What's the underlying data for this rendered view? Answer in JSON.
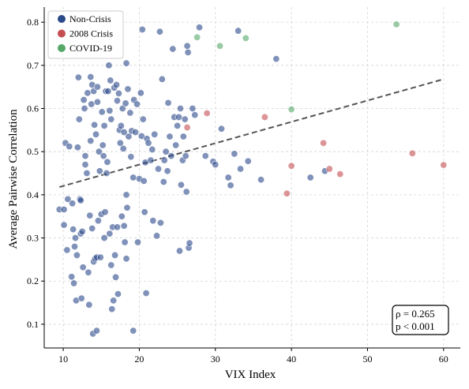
{
  "chart_data": {
    "type": "scatter",
    "xlabel": "VIX Index",
    "ylabel": "Average Pairwise Correlation",
    "xlim": [
      7.5,
      62.2
    ],
    "ylim": [
      0.045,
      0.835
    ],
    "xticks": [
      10,
      20,
      30,
      40,
      50,
      60
    ],
    "yticks": [
      0.1,
      0.2,
      0.3,
      0.4,
      0.5,
      0.6,
      0.7,
      0.8
    ],
    "grid": true,
    "legend_position": "top-left",
    "colors": {
      "Non-Crisis": "#2c4a8a",
      "2008 Crisis": "#c44e52",
      "COVID-19": "#55a868",
      "trend": "#555555"
    },
    "series": [
      {
        "name": "Non-Crisis",
        "points": [
          [
            9.5,
            0.366
          ],
          [
            10.1,
            0.366
          ],
          [
            10.1,
            0.33
          ],
          [
            10.3,
            0.52
          ],
          [
            10.5,
            0.272
          ],
          [
            10.6,
            0.39
          ],
          [
            10.8,
            0.512
          ],
          [
            11.1,
            0.21
          ],
          [
            11.2,
            0.38
          ],
          [
            11.3,
            0.32
          ],
          [
            11.4,
            0.195
          ],
          [
            11.5,
            0.28
          ],
          [
            11.6,
            0.3
          ],
          [
            11.7,
            0.155
          ],
          [
            11.8,
            0.26
          ],
          [
            11.9,
            0.51
          ],
          [
            12.0,
            0.672
          ],
          [
            12.1,
            0.575
          ],
          [
            12.2,
            0.39
          ],
          [
            12.3,
            0.387
          ],
          [
            12.3,
            0.31
          ],
          [
            12.4,
            0.16
          ],
          [
            12.5,
            0.315
          ],
          [
            12.6,
            0.232
          ],
          [
            12.7,
            0.62
          ],
          [
            12.8,
            0.6
          ],
          [
            12.9,
            0.47
          ],
          [
            12.9,
            0.49
          ],
          [
            13.1,
            0.45
          ],
          [
            13.2,
            0.636
          ],
          [
            13.3,
            0.22
          ],
          [
            13.4,
            0.145
          ],
          [
            13.5,
            0.352
          ],
          [
            13.6,
            0.525
          ],
          [
            13.6,
            0.673
          ],
          [
            13.7,
            0.61
          ],
          [
            13.8,
            0.655
          ],
          [
            13.8,
            0.322
          ],
          [
            13.9,
            0.078
          ],
          [
            14.0,
            0.245
          ],
          [
            14.0,
            0.64
          ],
          [
            14.1,
            0.562
          ],
          [
            14.2,
            0.252
          ],
          [
            14.3,
            0.54
          ],
          [
            14.4,
            0.255
          ],
          [
            14.4,
            0.085
          ],
          [
            14.5,
            0.65
          ],
          [
            14.5,
            0.615
          ],
          [
            14.6,
            0.34
          ],
          [
            14.7,
            0.5
          ],
          [
            14.8,
            0.455
          ],
          [
            14.9,
            0.255
          ],
          [
            15.0,
            0.355
          ],
          [
            15.1,
            0.592
          ],
          [
            15.2,
            0.515
          ],
          [
            15.3,
            0.49
          ],
          [
            15.4,
            0.56
          ],
          [
            15.4,
            0.3
          ],
          [
            15.5,
            0.36
          ],
          [
            15.6,
            0.64
          ],
          [
            15.7,
            0.45
          ],
          [
            15.8,
            0.476
          ],
          [
            15.9,
            0.64
          ],
          [
            16.0,
            0.7
          ],
          [
            16.1,
            0.595
          ],
          [
            16.1,
            0.31
          ],
          [
            16.2,
            0.665
          ],
          [
            16.3,
            0.575
          ],
          [
            16.3,
            0.237
          ],
          [
            16.4,
            0.135
          ],
          [
            16.5,
            0.325
          ],
          [
            16.6,
            0.155
          ],
          [
            16.7,
            0.648
          ],
          [
            16.8,
            0.26
          ],
          [
            16.9,
            0.209
          ],
          [
            17.0,
            0.655
          ],
          [
            17.1,
            0.618
          ],
          [
            17.1,
            0.325
          ],
          [
            17.2,
            0.17
          ],
          [
            17.3,
            0.635
          ],
          [
            17.4,
            0.55
          ],
          [
            17.5,
            0.52
          ],
          [
            17.6,
            0.56
          ],
          [
            17.7,
            0.35
          ],
          [
            17.8,
            0.6
          ],
          [
            17.9,
            0.507
          ],
          [
            18.0,
            0.545
          ],
          [
            18.0,
            0.328
          ],
          [
            18.1,
            0.29
          ],
          [
            18.2,
            0.612
          ],
          [
            18.3,
            0.705
          ],
          [
            18.3,
            0.4
          ],
          [
            18.3,
            0.252
          ],
          [
            18.4,
            0.37
          ],
          [
            18.5,
            0.645
          ],
          [
            18.6,
            0.535
          ],
          [
            18.8,
            0.59
          ],
          [
            18.9,
            0.488
          ],
          [
            19.0,
            0.548
          ],
          [
            19.2,
            0.44
          ],
          [
            19.2,
            0.085
          ],
          [
            19.3,
            0.62
          ],
          [
            19.5,
            0.545
          ],
          [
            19.7,
            0.61
          ],
          [
            19.8,
            0.29
          ],
          [
            20.0,
            0.437
          ],
          [
            20.2,
            0.636
          ],
          [
            20.3,
            0.536
          ],
          [
            20.4,
            0.783
          ],
          [
            20.5,
            0.575
          ],
          [
            20.6,
            0.432
          ],
          [
            20.7,
            0.36
          ],
          [
            20.8,
            0.475
          ],
          [
            20.9,
            0.172
          ],
          [
            21.0,
            0.53
          ],
          [
            21.2,
            0.52
          ],
          [
            21.5,
            0.48
          ],
          [
            21.7,
            0.505
          ],
          [
            21.8,
            0.34
          ],
          [
            22.0,
            0.54
          ],
          [
            22.3,
            0.305
          ],
          [
            22.5,
            0.46
          ],
          [
            22.7,
            0.778
          ],
          [
            22.8,
            0.335
          ],
          [
            23.0,
            0.668
          ],
          [
            23.2,
            0.43
          ],
          [
            23.3,
            0.48
          ],
          [
            23.5,
            0.5
          ],
          [
            23.7,
            0.455
          ],
          [
            23.8,
            0.613
          ],
          [
            24.0,
            0.535
          ],
          [
            24.2,
            0.49
          ],
          [
            24.4,
            0.738
          ],
          [
            24.6,
            0.58
          ],
          [
            24.8,
            0.515
          ],
          [
            25.0,
            0.56
          ],
          [
            25.2,
            0.58
          ],
          [
            25.3,
            0.27
          ],
          [
            25.4,
            0.6
          ],
          [
            25.5,
            0.423
          ],
          [
            25.7,
            0.48
          ],
          [
            25.8,
            0.535
          ],
          [
            26.0,
            0.575
          ],
          [
            26.1,
            0.49
          ],
          [
            26.2,
            0.407
          ],
          [
            26.3,
            0.745
          ],
          [
            26.4,
            0.73
          ],
          [
            26.5,
            0.277
          ],
          [
            26.6,
            0.288
          ],
          [
            27.0,
            0.6
          ],
          [
            27.3,
            0.585
          ],
          [
            27.9,
            0.788
          ],
          [
            28.7,
            0.49
          ],
          [
            29.7,
            0.477
          ],
          [
            30.0,
            0.47
          ],
          [
            30.8,
            0.553
          ],
          [
            31.7,
            0.44
          ],
          [
            32.0,
            0.422
          ],
          [
            32.5,
            0.495
          ],
          [
            33.0,
            0.78
          ],
          [
            33.3,
            0.46
          ],
          [
            34.3,
            0.478
          ],
          [
            36.0,
            0.435
          ],
          [
            38.0,
            0.715
          ],
          [
            42.5,
            0.44
          ],
          [
            44.4,
            0.455
          ]
        ]
      },
      {
        "name": "2008 Crisis",
        "points": [
          [
            26.3,
            0.556
          ],
          [
            28.9,
            0.589
          ],
          [
            36.5,
            0.58
          ],
          [
            39.4,
            0.403
          ],
          [
            40.0,
            0.467
          ],
          [
            44.2,
            0.52
          ],
          [
            45.0,
            0.46
          ],
          [
            46.4,
            0.448
          ],
          [
            55.9,
            0.496
          ],
          [
            60.0,
            0.469
          ]
        ]
      },
      {
        "name": "COVID-19",
        "points": [
          [
            27.6,
            0.765
          ],
          [
            30.6,
            0.745
          ],
          [
            34.0,
            0.763
          ],
          [
            40.0,
            0.598
          ],
          [
            53.8,
            0.795
          ]
        ]
      }
    ],
    "trend_line": {
      "x": [
        9.5,
        60.0
      ],
      "y": [
        0.418,
        0.668
      ]
    },
    "annotation": {
      "rho_label": "ρ = 0.265",
      "p_label": "p < 0.001"
    }
  }
}
